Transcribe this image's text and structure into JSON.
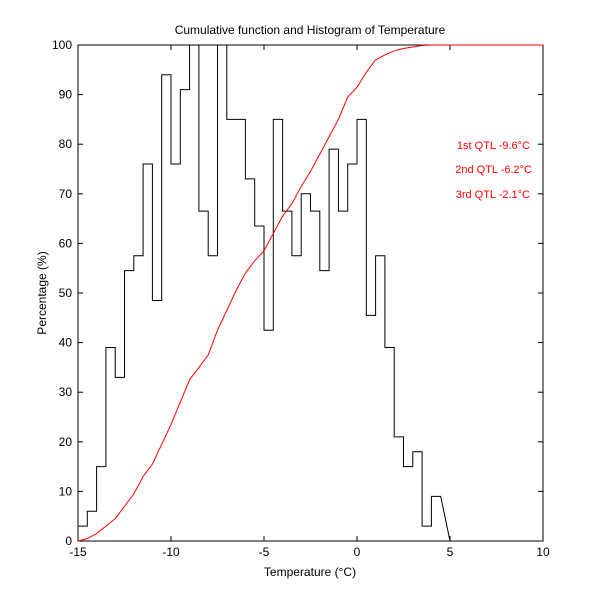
{
  "chart_data": {
    "type": "histogram+line",
    "title": "Cumulative function and Histogram of Temperature",
    "xlabel": "Temperature (°C)",
    "ylabel": "Percentage (%)",
    "xlim": [
      -15,
      10
    ],
    "ylim": [
      0,
      100
    ],
    "xticks": [
      -15,
      -10,
      -5,
      0,
      5,
      10
    ],
    "xtick_labels": [
      "-15",
      "-10",
      "-5",
      "0",
      "5",
      "10"
    ],
    "yticks": [
      0,
      10,
      20,
      30,
      40,
      50,
      60,
      70,
      80,
      90,
      100
    ],
    "ytick_labels": [
      "0",
      "10",
      "20",
      "30",
      "40",
      "50",
      "60",
      "70",
      "80",
      "90",
      "100"
    ],
    "grid": false,
    "series": [
      {
        "name": "histogram",
        "kind": "stairs",
        "color": "#000000",
        "x_edges": [
          -15,
          -14.5,
          -14,
          -13.5,
          -13,
          -12.5,
          -12,
          -11.5,
          -11,
          -10.5,
          -10,
          -9.5,
          -9,
          -8.5,
          -8,
          -7.5,
          -7,
          -6.5,
          -6,
          -5.5,
          -5,
          -4.5,
          -4,
          -3.5,
          -3,
          -2.5,
          -2,
          -1.5,
          -1,
          -0.5,
          0,
          0.5,
          1,
          1.5,
          2,
          2.5,
          3,
          3.5,
          4,
          4.5
        ],
        "values": [
          3,
          6,
          15,
          39,
          33,
          54.5,
          57.5,
          76,
          48.5,
          94,
          76,
          91,
          100,
          66.5,
          57.5,
          100,
          85,
          85,
          73,
          63.5,
          42.5,
          85,
          66.5,
          57.5,
          70,
          66.5,
          54.5,
          79,
          66.5,
          76,
          85,
          45.5,
          57.5,
          39,
          21,
          15,
          18,
          3,
          9
        ]
      },
      {
        "name": "cumulative",
        "kind": "line",
        "color": "#ff0000",
        "x": [
          -15,
          -14.5,
          -14,
          -13.5,
          -13,
          -12.5,
          -12,
          -11.5,
          -11,
          -10.5,
          -10,
          -9.5,
          -9,
          -8.5,
          -8,
          -7.5,
          -7,
          -6.5,
          -6,
          -5.5,
          -5,
          -4.5,
          -4,
          -3.5,
          -3,
          -2.5,
          -2,
          -1.5,
          -1,
          -0.5,
          0,
          0.5,
          1,
          1.5,
          2,
          2.5,
          3,
          3.5,
          4,
          4.5,
          5,
          10
        ],
        "values": [
          0,
          0.5,
          1.5,
          3,
          4.5,
          7,
          9.5,
          13,
          15.5,
          19.5,
          23.5,
          28,
          32.5,
          35,
          37.5,
          42.5,
          46.5,
          50.5,
          54,
          56.5,
          58.5,
          62,
          65.5,
          68,
          71.5,
          74.5,
          78,
          81.5,
          85,
          89.5,
          91.5,
          94.5,
          97,
          98,
          98.8,
          99.3,
          99.6,
          99.9,
          100,
          100,
          100,
          100
        ]
      }
    ],
    "annotations": [
      {
        "text": "1st QTL -9.6°C",
        "color": "#ff0000"
      },
      {
        "text": "2nd QTL -6.2°C",
        "color": "#ff0000"
      },
      {
        "text": "3rd QTL -2.1°C",
        "color": "#ff0000"
      }
    ]
  }
}
